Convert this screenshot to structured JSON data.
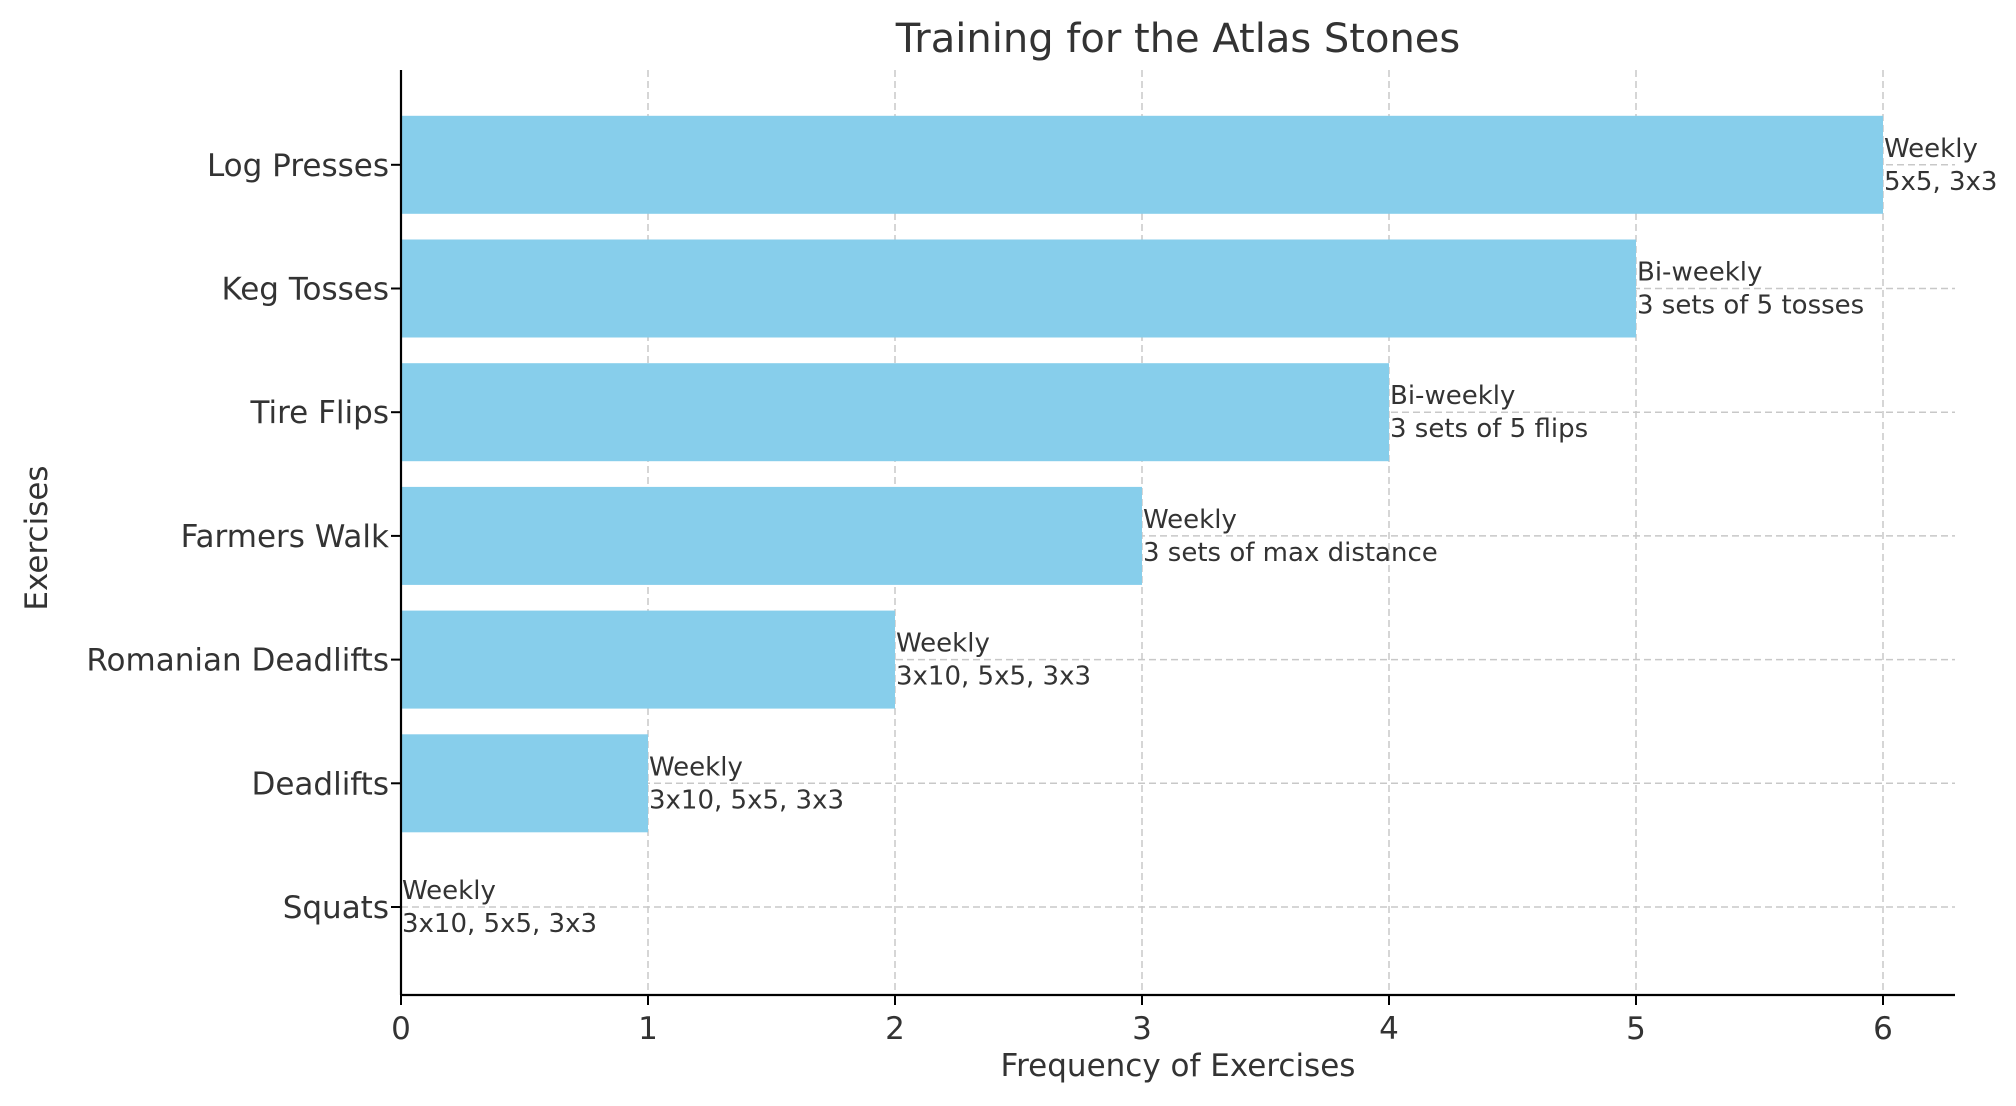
{
  "chart_data": {
    "type": "bar",
    "orientation": "horizontal",
    "title": "Training for the Atlas Stones",
    "xlabel": "Frequency of Exercises",
    "ylabel": "Exercises",
    "xlim": [
      0,
      6.3
    ],
    "x_ticks": [
      "0",
      "1",
      "2",
      "3",
      "4",
      "5",
      "6"
    ],
    "grid": true,
    "bar_color": "#87CEEB",
    "categories": [
      "Squats",
      "Deadlifts",
      "Romanian Deadlifts",
      "Farmers Walk",
      "Tire Flips",
      "Keg Tosses",
      "Log Presses"
    ],
    "values": [
      0,
      1,
      2,
      3,
      4,
      5,
      6
    ],
    "annotations": [
      [
        "Weekly",
        "3x10, 5x5, 3x3"
      ],
      [
        "Weekly",
        "3x10, 5x5, 3x3"
      ],
      [
        "Weekly",
        "3x10, 5x5, 3x3"
      ],
      [
        "Weekly",
        "3 sets of max distance"
      ],
      [
        "Bi-weekly",
        "3 sets of 5 flips"
      ],
      [
        "Bi-weekly",
        "3 sets of 5 tosses"
      ],
      [
        "Weekly",
        "5x5, 3x3"
      ]
    ]
  }
}
